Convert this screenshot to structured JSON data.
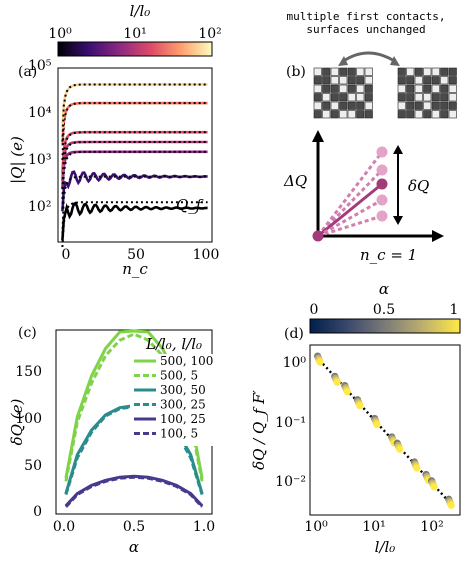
{
  "colorbar_top": {
    "label": "l/l₀",
    "ticks": [
      "10⁰",
      "10¹",
      "10²"
    ],
    "gradient": [
      "#000004",
      "#3b0f70",
      "#8c2981",
      "#de4968",
      "#fe9f6d",
      "#fcfdbf"
    ]
  },
  "colorbar_d": {
    "label": "α",
    "ticks": [
      "0",
      "0.5",
      "1"
    ],
    "gradient": [
      "#00204c",
      "#3a486b",
      "#7b7b78",
      "#bcaf6f",
      "#ffe945"
    ]
  },
  "panel_a": {
    "tag": "(a)",
    "ylabel": "|Q| (e)",
    "xlabel": "n_c",
    "ytick_labels": [
      "10²",
      "10³",
      "10⁴",
      "10⁵"
    ],
    "xtick_labels": [
      "0",
      "50",
      "100"
    ],
    "annotation": "Q_f"
  },
  "panel_b": {
    "tag": "(b)",
    "note_line1": "multiple first contacts,",
    "note_line2": "surfaces unchanged",
    "dq_label": "ΔQ",
    "delta_q_label": "δQ",
    "nc_label": "n_c = 1",
    "grid_left": [
      [
        0,
        1,
        0,
        1,
        1,
        0,
        0
      ],
      [
        1,
        1,
        0,
        0,
        1,
        1,
        0
      ],
      [
        0,
        1,
        1,
        0,
        1,
        0,
        1
      ],
      [
        1,
        0,
        1,
        1,
        0,
        0,
        1
      ],
      [
        0,
        1,
        0,
        1,
        1,
        1,
        0
      ],
      [
        1,
        0,
        1,
        0,
        0,
        1,
        1
      ]
    ],
    "grid_right": [
      [
        1,
        0,
        1,
        0,
        0,
        1,
        1
      ],
      [
        1,
        1,
        0,
        1,
        1,
        0,
        1
      ],
      [
        0,
        1,
        0,
        1,
        0,
        1,
        0
      ],
      [
        1,
        1,
        0,
        0,
        1,
        1,
        0
      ],
      [
        0,
        1,
        1,
        0,
        1,
        1,
        1
      ],
      [
        1,
        1,
        0,
        1,
        0,
        1,
        0
      ]
    ]
  },
  "panel_c": {
    "tag": "(c)",
    "ylabel": "δQ (e)",
    "xlabel": "α",
    "legend_title": "L/l₀, l/l₀",
    "legend": [
      "500, 100",
      "500, 5",
      "300, 50",
      "300, 25",
      "100, 25",
      "100, 5"
    ],
    "ytick_labels": [
      "0",
      "50",
      "100",
      "150"
    ],
    "xtick_labels": [
      "0.0",
      "0.5",
      "1.0"
    ]
  },
  "panel_d": {
    "tag": "(d)",
    "ylabel": "δQ / Q_f F′",
    "xlabel": "l/l₀",
    "ytick_labels": [
      "10⁻²",
      "10⁻¹",
      "10⁰"
    ],
    "xtick_labels": [
      "10⁰",
      "10¹",
      "10²"
    ]
  },
  "chart_data": [
    {
      "type": "line",
      "panel": "a",
      "x": [
        0,
        20,
        40,
        60,
        80,
        100
      ],
      "xlim": [
        -3,
        103
      ],
      "ylim_log10": [
        1.7,
        5.1
      ],
      "yscale": "log",
      "series": [
        {
          "l_over_l0": 1,
          "color": "#000004",
          "final": 230,
          "dashed_fit": 300
        },
        {
          "l_over_l0": 5,
          "color": "#3b0f70",
          "final": 950,
          "dashed_fit": 950
        },
        {
          "l_over_l0": 10,
          "color": "#8c2981",
          "final": 2900,
          "dashed_fit": 2900
        },
        {
          "l_over_l0": 20,
          "color": "#b73779",
          "final": 4500,
          "dashed_fit": 4500
        },
        {
          "l_over_l0": 25,
          "color": "#de4968",
          "final": 7000,
          "dashed_fit": 7000
        },
        {
          "l_over_l0": 50,
          "color": "#f7705c",
          "final": 26000,
          "dashed_fit": 26000
        },
        {
          "l_over_l0": 100,
          "color": "#fcd38e",
          "final": 60000,
          "dashed_fit": 60000
        }
      ]
    },
    {
      "type": "line",
      "panel": "c",
      "x": [
        0.02,
        0.1,
        0.2,
        0.3,
        0.4,
        0.5,
        0.6,
        0.7,
        0.8,
        0.9,
        0.98
      ],
      "xlim": [
        -0.05,
        1.05
      ],
      "ylim": [
        0,
        180
      ],
      "series": [
        {
          "name": "500, 100",
          "color": "#7ed348",
          "dash": false,
          "values": [
            35,
            95,
            135,
            162,
            178,
            185,
            178,
            162,
            135,
            95,
            35
          ]
        },
        {
          "name": "500, 5",
          "color": "#7ed348",
          "dash": true,
          "values": [
            32,
            90,
            128,
            155,
            170,
            176,
            170,
            155,
            128,
            90,
            32
          ]
        },
        {
          "name": "300, 50",
          "color": "#2a8c8c",
          "dash": false,
          "values": [
            20,
            58,
            82,
            97,
            104,
            106,
            104,
            97,
            82,
            58,
            20
          ]
        },
        {
          "name": "300, 25",
          "color": "#2a8c8c",
          "dash": true,
          "values": [
            19,
            55,
            80,
            96,
            103,
            105,
            103,
            96,
            80,
            55,
            19
          ]
        },
        {
          "name": "100, 25",
          "color": "#463a8c",
          "dash": false,
          "values": [
            8,
            20,
            28,
            33,
            36,
            37,
            36,
            33,
            28,
            20,
            8
          ]
        },
        {
          "name": "100, 5",
          "color": "#463a8c",
          "dash": true,
          "values": [
            7,
            19,
            27,
            32,
            35,
            36,
            35,
            32,
            27,
            19,
            7
          ]
        }
      ]
    },
    {
      "type": "scatter",
      "panel": "d",
      "xscale": "log",
      "yscale": "log",
      "xlim": [
        0.7,
        300
      ],
      "ylim": [
        0.003,
        1.6
      ],
      "points_l": [
        1,
        2,
        3,
        5,
        10,
        20,
        25,
        50,
        80,
        100,
        200
      ],
      "points_y": [
        0.95,
        0.45,
        0.32,
        0.19,
        0.095,
        0.048,
        0.038,
        0.019,
        0.012,
        0.0095,
        0.0048
      ],
      "fit": "y ∝ (l/l₀)⁻¹"
    }
  ]
}
